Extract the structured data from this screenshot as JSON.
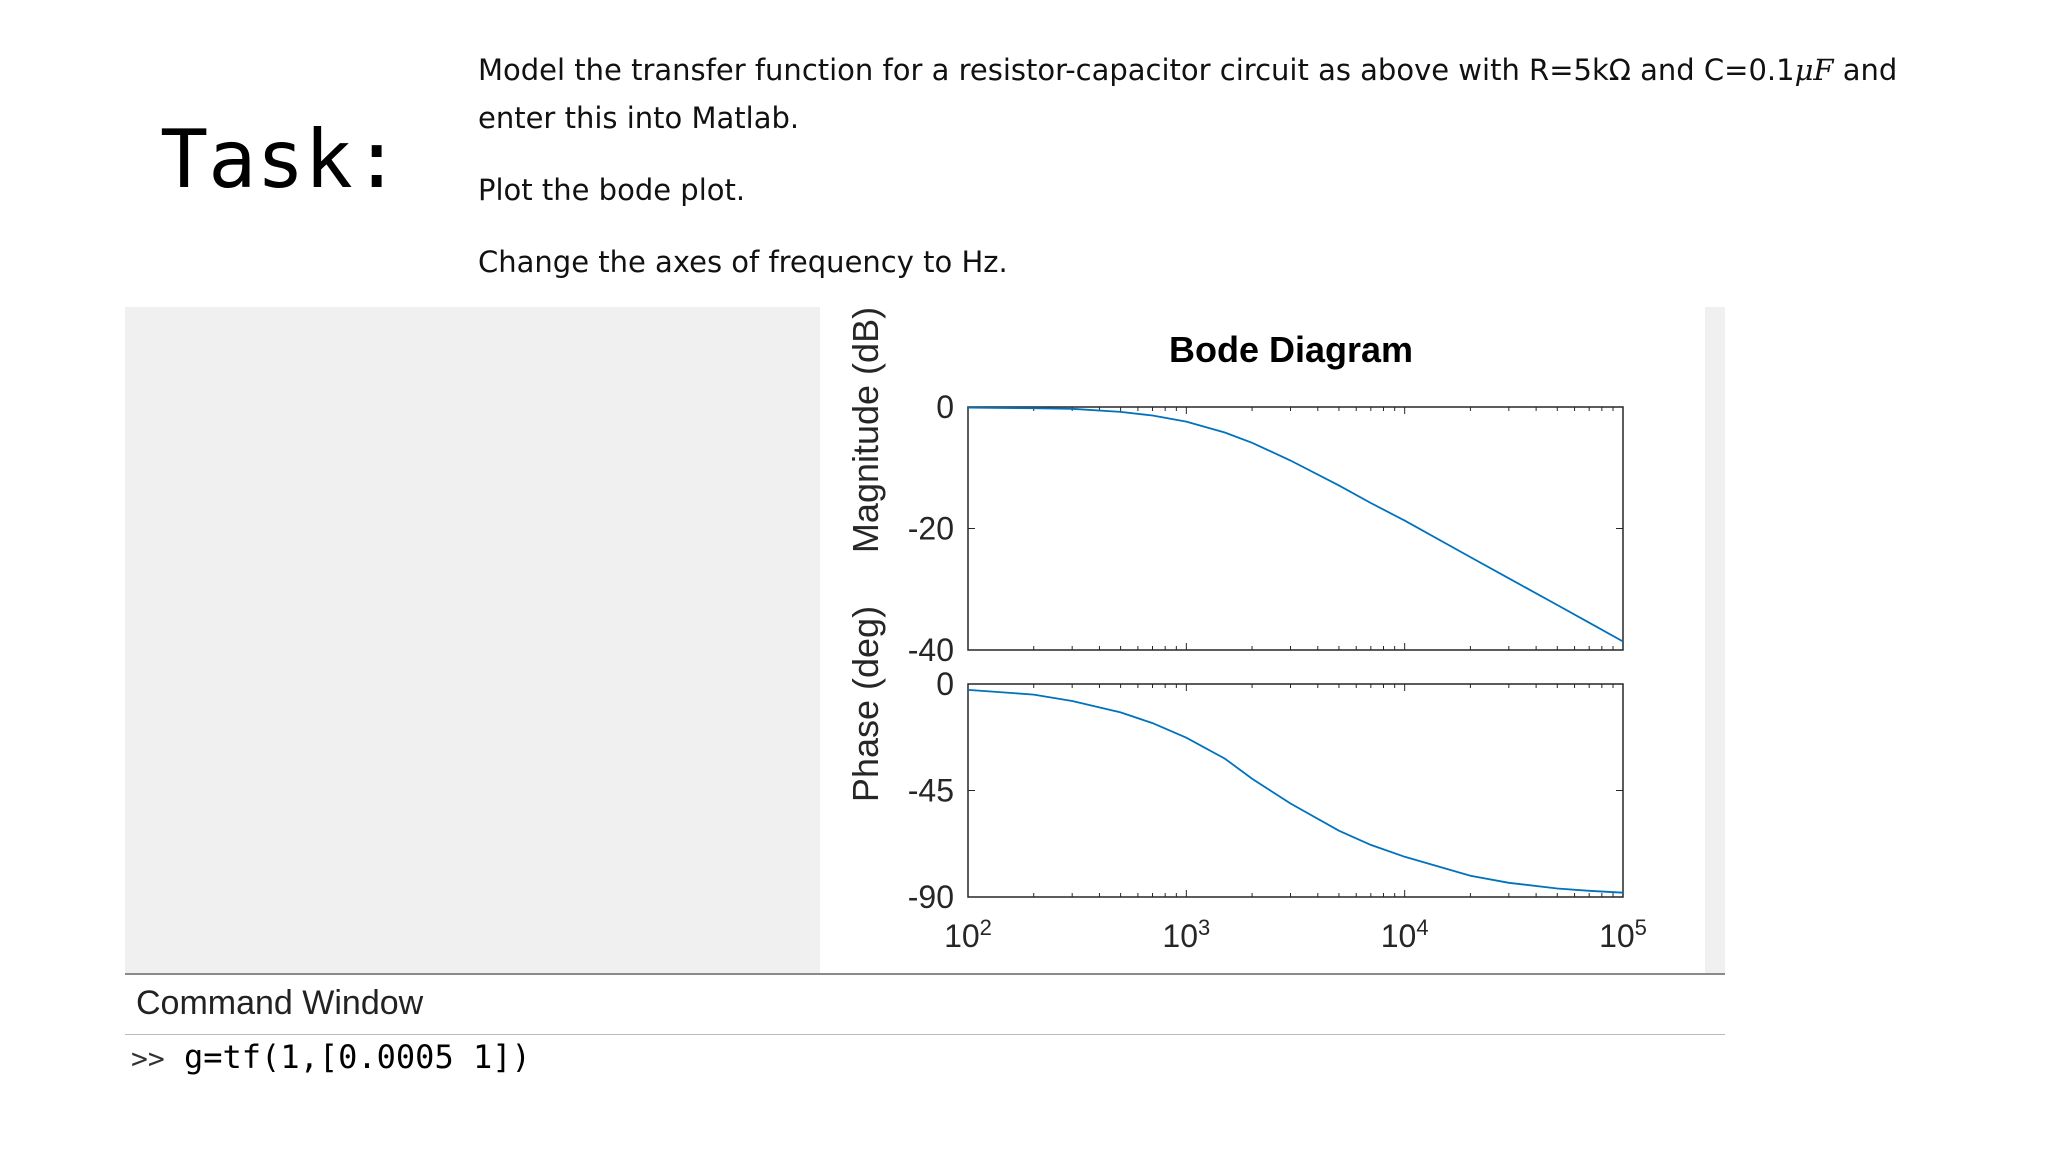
{
  "task": {
    "title": "Task:",
    "instructions": {
      "line1_a": "Model the transfer function for a resistor-capacitor circuit as above with R=5kΩ and C=0.1",
      "line1_math": "μF",
      "line1_b": " and enter this into Matlab.",
      "line2": "Plot the bode plot.",
      "line3": "Change the axes of frequency to Hz."
    }
  },
  "command_window": {
    "title": "Command Window",
    "prompt": ">>",
    "command": "g=tf(1,[0.0005 1])"
  },
  "colors": {
    "curve": "#0072bd",
    "axis": "#262626",
    "panel_bg": "#f0f0f0"
  },
  "chart_data": {
    "type": "line",
    "title": "Bode Diagram",
    "x_scale": "log",
    "xlim": [
      100,
      100000
    ],
    "x_tick_values": [
      100,
      1000,
      10000,
      100000
    ],
    "x_tick_exponents": [
      "2",
      "3",
      "4",
      "5"
    ],
    "x_tick_base": "10",
    "magnitude": {
      "ylabel": "Magnitude (dB)",
      "ylim": [
        -40,
        0
      ],
      "y_ticks": [
        "0",
        "-20",
        "-40"
      ],
      "x": [
        100,
        200,
        300,
        500,
        700,
        1000,
        1500,
        2000,
        3000,
        5000,
        7000,
        10000,
        20000,
        30000,
        50000,
        70000,
        100000
      ],
      "y": [
        -0.1,
        -0.2,
        -0.3,
        -0.8,
        -1.4,
        -2.4,
        -4.2,
        -5.9,
        -8.8,
        -12.9,
        -15.8,
        -18.7,
        -24.7,
        -28.2,
        -32.6,
        -35.5,
        -38.6
      ]
    },
    "phase": {
      "ylabel": "Phase (deg)",
      "ylim": [
        -90,
        0
      ],
      "y_ticks": [
        "0",
        "-45",
        "-90"
      ],
      "x": [
        100,
        200,
        300,
        500,
        700,
        1000,
        1500,
        2000,
        3000,
        5000,
        7000,
        10000,
        20000,
        30000,
        50000,
        70000,
        100000
      ],
      "y": [
        -2.5,
        -4.5,
        -7.2,
        -12,
        -16.5,
        -22.7,
        -31.5,
        -40,
        -50.5,
        -62,
        -68,
        -73,
        -81,
        -84,
        -86.4,
        -87.4,
        -88.2
      ]
    }
  }
}
